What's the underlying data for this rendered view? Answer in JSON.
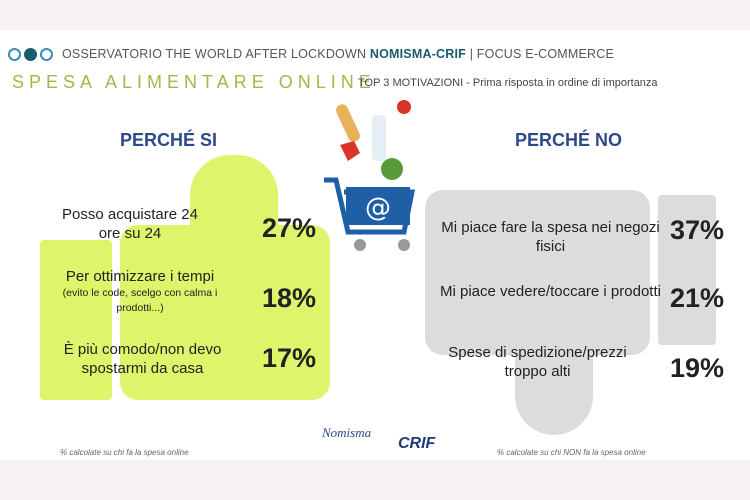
{
  "header": {
    "prefix": "OSSERVATORIO THE WORLD AFTER LOCKDOWN ",
    "brand": "NOMISMA-CRIF",
    "suffix": " | FOCUS E-COMMERCE"
  },
  "title": "SPESA ALIMENTARE ONLINE",
  "subtitle": "TOP 3 MOTIVAZIONI - Prima risposta in ordine di importanza",
  "colors": {
    "yes": "#dcf56a",
    "no": "#dcdcdc",
    "heading": "#2c4a8a",
    "title": "#9fb94a"
  },
  "chart_data": {
    "type": "table",
    "title": "SPESA ALIMENTARE ONLINE",
    "groups": [
      {
        "name": "PERCHÉ SI",
        "rows": [
          {
            "label": "Posso acquistare 24 ore su 24",
            "note": "",
            "value": 27
          },
          {
            "label": "Per ottimizzare i tempi",
            "note": "(evito le code, scelgo con calma i prodotti...)",
            "value": 18
          },
          {
            "label": "È più comodo/non devo spostarmi da casa",
            "note": "",
            "value": 17
          }
        ],
        "footnote": "% calcolate su chi fa la spesa online"
      },
      {
        "name": "PERCHÉ NO",
        "rows": [
          {
            "label": "Mi piace fare la spesa nei negozi fisici",
            "note": "",
            "value": 37
          },
          {
            "label": "Mi piace vedere/toccare i prodotti",
            "note": "",
            "value": 21
          },
          {
            "label": "Spese di spedizione/prezzi troppo alti",
            "note": "",
            "value": 19
          }
        ],
        "footnote": "% calcolate su chi NON fa la spesa online"
      }
    ]
  },
  "pct": {
    "y0": "27%",
    "y1": "18%",
    "y2": "17%",
    "n0": "37%",
    "n1": "21%",
    "n2": "19%"
  },
  "logos": {
    "nomisma": "Nomisma",
    "crif": "CRIF"
  },
  "icons": [
    "thumbs-up-icon",
    "thumbs-down-icon",
    "shopping-cart-icon"
  ]
}
